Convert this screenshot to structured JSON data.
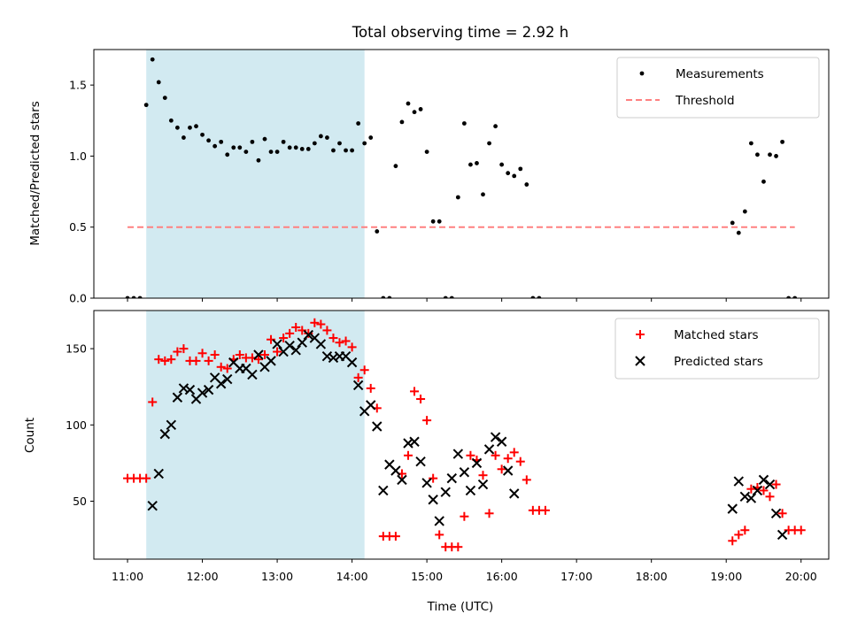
{
  "chart_data": [
    {
      "type": "scatter",
      "title": "Total observing time = 2.92 h",
      "xlabel": "",
      "ylabel": "Matched/Predicted stars",
      "x_range_hours": [
        10.55,
        20.37
      ],
      "ylim": [
        0,
        1.75
      ],
      "yticks": [
        0.0,
        0.5,
        1.0,
        1.5
      ],
      "ytick_labels": [
        "0.0",
        "0.5",
        "1.0",
        "1.5"
      ],
      "shaded_span": {
        "start": "11:15",
        "end": "14:10",
        "color": "#add8e6"
      },
      "legend": {
        "position": "top-right",
        "entries": [
          {
            "label": "Measurements",
            "key": "measurements"
          },
          {
            "label": "Threshold",
            "key": "threshold"
          }
        ]
      },
      "threshold": {
        "value": 0.5,
        "x_start": "11:00",
        "x_end": "19:55",
        "color": "#ff8080"
      },
      "series": [
        {
          "name": "Measurements",
          "key": "measurements",
          "color": "#000000",
          "marker": "dot",
          "points": [
            [
              "11:00",
              0
            ],
            [
              "11:05",
              0
            ],
            [
              "11:10",
              0
            ],
            [
              "11:15",
              1.36
            ],
            [
              "11:20",
              1.68
            ],
            [
              "11:25",
              1.52
            ],
            [
              "11:30",
              1.41
            ],
            [
              "11:35",
              1.25
            ],
            [
              "11:40",
              1.2
            ],
            [
              "11:45",
              1.13
            ],
            [
              "11:50",
              1.2
            ],
            [
              "11:55",
              1.21
            ],
            [
              "12:00",
              1.15
            ],
            [
              "12:05",
              1.11
            ],
            [
              "12:10",
              1.07
            ],
            [
              "12:15",
              1.1
            ],
            [
              "12:20",
              1.01
            ],
            [
              "12:25",
              1.06
            ],
            [
              "12:30",
              1.06
            ],
            [
              "12:35",
              1.03
            ],
            [
              "12:40",
              1.1
            ],
            [
              "12:45",
              0.97
            ],
            [
              "12:50",
              1.12
            ],
            [
              "12:55",
              1.03
            ],
            [
              "13:00",
              1.03
            ],
            [
              "13:05",
              1.1
            ],
            [
              "13:10",
              1.06
            ],
            [
              "13:15",
              1.06
            ],
            [
              "13:20",
              1.05
            ],
            [
              "13:25",
              1.05
            ],
            [
              "13:30",
              1.09
            ],
            [
              "13:35",
              1.14
            ],
            [
              "13:40",
              1.13
            ],
            [
              "13:45",
              1.04
            ],
            [
              "13:50",
              1.09
            ],
            [
              "13:55",
              1.04
            ],
            [
              "14:00",
              1.04
            ],
            [
              "14:05",
              1.23
            ],
            [
              "14:10",
              1.09
            ],
            [
              "14:15",
              1.13
            ],
            [
              "14:20",
              0.47
            ],
            [
              "14:25",
              0
            ],
            [
              "14:30",
              0
            ],
            [
              "14:35",
              0.93
            ],
            [
              "14:40",
              1.24
            ],
            [
              "14:45",
              1.37
            ],
            [
              "14:50",
              1.31
            ],
            [
              "14:55",
              1.33
            ],
            [
              "15:00",
              1.03
            ],
            [
              "15:05",
              0.54
            ],
            [
              "15:10",
              0.54
            ],
            [
              "15:15",
              0
            ],
            [
              "15:20",
              0
            ],
            [
              "15:25",
              0.71
            ],
            [
              "15:30",
              1.23
            ],
            [
              "15:35",
              0.94
            ],
            [
              "15:40",
              0.95
            ],
            [
              "15:45",
              0.73
            ],
            [
              "15:50",
              1.09
            ],
            [
              "15:55",
              1.21
            ],
            [
              "16:00",
              0.94
            ],
            [
              "16:05",
              0.88
            ],
            [
              "16:10",
              0.86
            ],
            [
              "16:15",
              0.91
            ],
            [
              "16:20",
              0.8
            ],
            [
              "16:25",
              0
            ],
            [
              "16:30",
              0
            ],
            [
              "19:05",
              0.53
            ],
            [
              "19:10",
              0.46
            ],
            [
              "19:15",
              0.61
            ],
            [
              "19:20",
              1.09
            ],
            [
              "19:25",
              1.01
            ],
            [
              "19:30",
              0.82
            ],
            [
              "19:35",
              1.01
            ],
            [
              "19:40",
              1.0
            ],
            [
              "19:45",
              1.1
            ],
            [
              "19:50",
              0
            ],
            [
              "19:55",
              0
            ]
          ]
        }
      ]
    },
    {
      "type": "scatter",
      "xlabel": "Time (UTC)",
      "ylabel": "Count",
      "x_range_hours": [
        10.55,
        20.37
      ],
      "ylim": [
        12,
        175
      ],
      "yticks": [
        50,
        100,
        150
      ],
      "ytick_labels": [
        "50",
        "100",
        "150"
      ],
      "xticks": [
        "11:00",
        "12:00",
        "13:00",
        "14:00",
        "15:00",
        "16:00",
        "17:00",
        "18:00",
        "19:00",
        "20:00"
      ],
      "shaded_span": {
        "start": "11:15",
        "end": "14:10",
        "color": "#add8e6"
      },
      "legend": {
        "position": "top-right",
        "entries": [
          {
            "label": "Matched stars",
            "key": "matched"
          },
          {
            "label": "Predicted stars",
            "key": "predicted"
          }
        ]
      },
      "series": [
        {
          "name": "Matched stars",
          "key": "matched",
          "color": "#ff0000",
          "marker": "plus",
          "points": [
            [
              "11:00",
              65
            ],
            [
              "11:05",
              65
            ],
            [
              "11:10",
              65
            ],
            [
              "11:15",
              65
            ],
            [
              "11:20",
              115
            ],
            [
              "11:25",
              143
            ],
            [
              "11:30",
              142
            ],
            [
              "11:35",
              143
            ],
            [
              "11:40",
              148
            ],
            [
              "11:45",
              150
            ],
            [
              "11:50",
              142
            ],
            [
              "11:55",
              142
            ],
            [
              "12:00",
              147
            ],
            [
              "12:05",
              142
            ],
            [
              "12:10",
              146
            ],
            [
              "12:15",
              138
            ],
            [
              "12:20",
              137
            ],
            [
              "12:25",
              143
            ],
            [
              "12:30",
              146
            ],
            [
              "12:35",
              144
            ],
            [
              "12:40",
              144
            ],
            [
              "12:45",
              143
            ],
            [
              "12:50",
              146
            ],
            [
              "12:55",
              156
            ],
            [
              "13:00",
              148
            ],
            [
              "13:05",
              157
            ],
            [
              "13:10",
              160
            ],
            [
              "13:15",
              164
            ],
            [
              "13:20",
              162
            ],
            [
              "13:25",
              160
            ],
            [
              "13:30",
              167
            ],
            [
              "13:35",
              166
            ],
            [
              "13:40",
              162
            ],
            [
              "13:45",
              157
            ],
            [
              "13:50",
              154
            ],
            [
              "13:55",
              155
            ],
            [
              "14:00",
              151
            ],
            [
              "14:05",
              131
            ],
            [
              "14:10",
              136
            ],
            [
              "14:15",
              124
            ],
            [
              "14:20",
              111
            ],
            [
              "14:25",
              27
            ],
            [
              "14:30",
              27
            ],
            [
              "14:35",
              27
            ],
            [
              "14:40",
              68
            ],
            [
              "14:45",
              80
            ],
            [
              "14:50",
              122
            ],
            [
              "14:55",
              117
            ],
            [
              "15:00",
              103
            ],
            [
              "15:05",
              65
            ],
            [
              "15:10",
              28
            ],
            [
              "15:15",
              20
            ],
            [
              "15:20",
              20
            ],
            [
              "15:25",
              20
            ],
            [
              "15:30",
              40
            ],
            [
              "15:35",
              80
            ],
            [
              "15:40",
              77
            ],
            [
              "15:45",
              67
            ],
            [
              "15:50",
              42
            ],
            [
              "15:55",
              80
            ],
            [
              "16:00",
              71
            ],
            [
              "16:05",
              78
            ],
            [
              "16:10",
              82
            ],
            [
              "16:15",
              76
            ],
            [
              "16:20",
              64
            ],
            [
              "16:25",
              44
            ],
            [
              "16:30",
              44
            ],
            [
              "16:35",
              44
            ],
            [
              "19:05",
              24
            ],
            [
              "19:10",
              28
            ],
            [
              "19:15",
              31
            ],
            [
              "19:20",
              58
            ],
            [
              "19:25",
              59
            ],
            [
              "19:30",
              57
            ],
            [
              "19:35",
              53
            ],
            [
              "19:40",
              61
            ],
            [
              "19:45",
              42
            ],
            [
              "19:50",
              31
            ],
            [
              "19:55",
              31
            ],
            [
              "20:00",
              31
            ]
          ]
        },
        {
          "name": "Predicted stars",
          "key": "predicted",
          "color": "#000000",
          "marker": "x",
          "points": [
            [
              "11:20",
              47
            ],
            [
              "11:25",
              68
            ],
            [
              "11:30",
              94
            ],
            [
              "11:35",
              100
            ],
            [
              "11:40",
              118
            ],
            [
              "11:45",
              124
            ],
            [
              "11:50",
              123
            ],
            [
              "11:55",
              117
            ],
            [
              "12:00",
              121
            ],
            [
              "12:05",
              123
            ],
            [
              "12:10",
              131
            ],
            [
              "12:15",
              127
            ],
            [
              "12:20",
              130
            ],
            [
              "12:25",
              141
            ],
            [
              "12:30",
              137
            ],
            [
              "12:35",
              137
            ],
            [
              "12:40",
              133
            ],
            [
              "12:45",
              146
            ],
            [
              "12:50",
              138
            ],
            [
              "12:55",
              142
            ],
            [
              "13:00",
              153
            ],
            [
              "13:05",
              148
            ],
            [
              "13:10",
              152
            ],
            [
              "13:15",
              149
            ],
            [
              "13:20",
              154
            ],
            [
              "13:25",
              159
            ],
            [
              "13:30",
              157
            ],
            [
              "13:35",
              153
            ],
            [
              "13:40",
              145
            ],
            [
              "13:45",
              144
            ],
            [
              "13:50",
              145
            ],
            [
              "13:55",
              145
            ],
            [
              "14:00",
              141
            ],
            [
              "14:05",
              126
            ],
            [
              "14:10",
              109
            ],
            [
              "14:15",
              113
            ],
            [
              "14:20",
              99
            ],
            [
              "14:25",
              57
            ],
            [
              "14:30",
              74
            ],
            [
              "14:35",
              70
            ],
            [
              "14:40",
              64
            ],
            [
              "14:45",
              88
            ],
            [
              "14:50",
              89
            ],
            [
              "14:55",
              76
            ],
            [
              "15:00",
              62
            ],
            [
              "15:05",
              51
            ],
            [
              "15:10",
              37
            ],
            [
              "15:15",
              56
            ],
            [
              "15:20",
              65
            ],
            [
              "15:25",
              81
            ],
            [
              "15:30",
              69
            ],
            [
              "15:35",
              57
            ],
            [
              "15:40",
              75
            ],
            [
              "15:45",
              61
            ],
            [
              "15:50",
              84
            ],
            [
              "15:55",
              92
            ],
            [
              "16:00",
              89
            ],
            [
              "16:05",
              70
            ],
            [
              "16:10",
              55
            ],
            [
              "19:05",
              45
            ],
            [
              "19:10",
              63
            ],
            [
              "19:15",
              53
            ],
            [
              "19:20",
              52
            ],
            [
              "19:25",
              57
            ],
            [
              "19:30",
              64
            ],
            [
              "19:35",
              61
            ],
            [
              "19:40",
              42
            ],
            [
              "19:45",
              28
            ]
          ]
        }
      ]
    }
  ]
}
